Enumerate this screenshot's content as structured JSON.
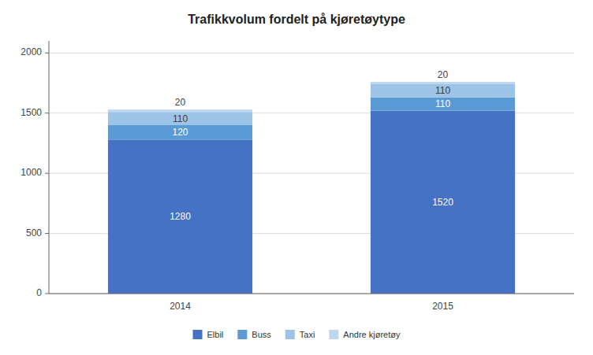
{
  "chart_data": {
    "type": "bar",
    "stacked": true,
    "title": "Trafikkvolum fordelt på kjøretøytype",
    "categories": [
      "2014",
      "2015"
    ],
    "series": [
      {
        "name": "Elbil",
        "values": [
          1280,
          1520
        ],
        "color": "#4472C4"
      },
      {
        "name": "Buss",
        "values": [
          120,
          110
        ],
        "color": "#5B9BD5"
      },
      {
        "name": "Taxi",
        "values": [
          110,
          110
        ],
        "color": "#9DC3E6"
      },
      {
        "name": "Andre kjøretøy",
        "values": [
          20,
          20
        ],
        "color": "#BDD7EE"
      }
    ],
    "ylim": [
      0,
      2100
    ],
    "yticks": [
      0,
      500,
      1000,
      1500,
      2000
    ],
    "grid": true,
    "data_labels": true,
    "legend": "bottom"
  }
}
